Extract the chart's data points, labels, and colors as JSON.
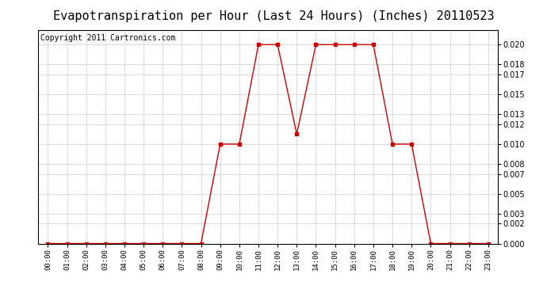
{
  "title": "Evapotranspiration per Hour (Last 24 Hours) (Inches) 20110523",
  "copyright": "Copyright 2011 Cartronics.com",
  "hours": [
    "00:00",
    "01:00",
    "02:00",
    "03:00",
    "04:00",
    "05:00",
    "06:00",
    "07:00",
    "08:00",
    "09:00",
    "10:00",
    "11:00",
    "12:00",
    "13:00",
    "14:00",
    "15:00",
    "16:00",
    "17:00",
    "18:00",
    "19:00",
    "20:00",
    "21:00",
    "22:00",
    "23:00"
  ],
  "values": [
    0.0,
    0.0,
    0.0,
    0.0,
    0.0,
    0.0,
    0.0,
    0.0,
    0.0,
    0.01,
    0.01,
    0.02,
    0.02,
    0.011,
    0.02,
    0.02,
    0.02,
    0.02,
    0.01,
    0.01,
    0.0,
    0.0,
    0.0,
    0.0
  ],
  "line_color": "#cc0000",
  "marker": "s",
  "marker_size": 2.5,
  "bg_color": "#ffffff",
  "grid_color": "#bbbbbb",
  "ylim": [
    0.0,
    0.0215
  ],
  "yticks": [
    0.0,
    0.002,
    0.003,
    0.005,
    0.007,
    0.008,
    0.01,
    0.012,
    0.013,
    0.015,
    0.017,
    0.018,
    0.02
  ],
  "title_fontsize": 11,
  "copyright_fontsize": 7
}
